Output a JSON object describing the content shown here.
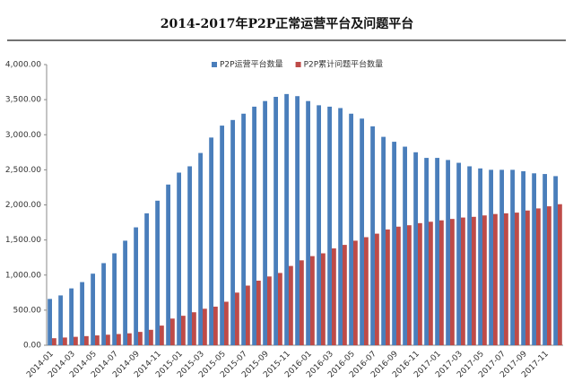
{
  "chart_data": {
    "type": "bar",
    "title": "2014-2017年P2P正常运营平台及问题平台",
    "categories": [
      "2014-01",
      null,
      "2014-03",
      null,
      "2014-05",
      null,
      "2014-07",
      null,
      "2014-09",
      null,
      "2014-11",
      null,
      "2015-01",
      null,
      "2015-03",
      null,
      "2015-05",
      null,
      "2015-07",
      null,
      "2015-09",
      null,
      "2015-11",
      null,
      "2016-01",
      null,
      "2016-03",
      null,
      "2016-05",
      null,
      "2016-07",
      null,
      "2016-09",
      null,
      "2016-11",
      null,
      "2017-01",
      null,
      "2017-03",
      null,
      "2017-05",
      null,
      "2017-07",
      null,
      "2017-09",
      null,
      "2017-11",
      null
    ],
    "series": [
      {
        "name": "P2P运营平台数量",
        "color": "#4a7ebb",
        "values": [
          660,
          710,
          810,
          900,
          1020,
          1170,
          1310,
          1490,
          1680,
          1880,
          2060,
          2290,
          2460,
          2550,
          2740,
          2960,
          3130,
          3210,
          3300,
          3400,
          3480,
          3540,
          3580,
          3550,
          3480,
          3420,
          3400,
          3380,
          3300,
          3230,
          3120,
          2970,
          2900,
          2830,
          2750,
          2670,
          2670,
          2640,
          2600,
          2550,
          2520,
          2500,
          2500,
          2500,
          2480,
          2450,
          2440,
          2410
        ]
      },
      {
        "name": "P2P累计问题平台数量",
        "color": "#be4b48",
        "values": [
          100,
          110,
          120,
          130,
          140,
          150,
          160,
          170,
          190,
          220,
          280,
          380,
          420,
          470,
          520,
          550,
          620,
          750,
          850,
          920,
          980,
          1030,
          1130,
          1210,
          1270,
          1310,
          1380,
          1430,
          1490,
          1540,
          1590,
          1650,
          1690,
          1710,
          1740,
          1760,
          1780,
          1800,
          1820,
          1830,
          1850,
          1870,
          1880,
          1890,
          1920,
          1950,
          1980,
          2010
        ]
      }
    ],
    "ylim": [
      0,
      4000
    ],
    "yticks": [
      {
        "value": 0,
        "label": "0.00"
      },
      {
        "value": 500,
        "label": "500.00"
      },
      {
        "value": 1000,
        "label": "1,000.00"
      },
      {
        "value": 1500,
        "label": "1,500.00"
      },
      {
        "value": 2000,
        "label": "2,000.00"
      },
      {
        "value": 2500,
        "label": "2,500.00"
      },
      {
        "value": 3000,
        "label": "3,000.00"
      },
      {
        "value": 3500,
        "label": "3,500.00"
      },
      {
        "value": 4000,
        "label": "4,000.00"
      }
    ],
    "grid": false,
    "legend": "top"
  }
}
